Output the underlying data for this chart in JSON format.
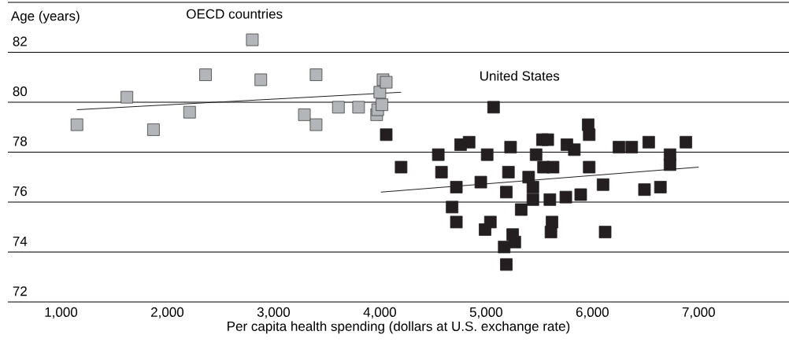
{
  "chart_data": {
    "type": "scatter",
    "xlabel": "Per capita health spending (dollars at U.S. exchange rate)",
    "ylabel": "Age (years)",
    "xlim": [
      500,
      7850
    ],
    "ylim": [
      72,
      84
    ],
    "xticks": [
      {
        "value": 1000,
        "label": "1,000"
      },
      {
        "value": 2000,
        "label": "2,000"
      },
      {
        "value": 3000,
        "label": "3,000"
      },
      {
        "value": 4000,
        "label": "4,000"
      },
      {
        "value": 5000,
        "label": "5,000"
      },
      {
        "value": 6000,
        "label": "6,000"
      },
      {
        "value": 7000,
        "label": "7,000"
      }
    ],
    "yticks": [
      72,
      74,
      76,
      78,
      80,
      82,
      {
        "value": 84,
        "label": null
      }
    ],
    "grid": "y",
    "marker": "square",
    "series": [
      {
        "name": "OECD countries",
        "color": "#b4b5b9",
        "x": [
          1150,
          1620,
          1870,
          2210,
          2360,
          2800,
          2880,
          3290,
          3400,
          3400,
          3610,
          3800,
          3970,
          3980,
          4020,
          4000,
          4030,
          4060
        ],
        "values": [
          79.1,
          80.2,
          78.9,
          79.6,
          81.1,
          82.5,
          80.9,
          79.5,
          81.1,
          79.1,
          79.8,
          79.8,
          79.5,
          79.7,
          79.9,
          80.4,
          80.9,
          80.8
        ]
      },
      {
        "name": "United States",
        "color": "#231f20",
        "x": [
          5070,
          4060,
          4200,
          4550,
          4580,
          4760,
          4840,
          4720,
          4680,
          4720,
          4950,
          5010,
          4990,
          5040,
          5230,
          5210,
          5190,
          5250,
          5270,
          5170,
          5190,
          5330,
          5400,
          5440,
          5440,
          5470,
          5530,
          5580,
          5540,
          5630,
          5600,
          5620,
          5610,
          5750,
          5760,
          5830,
          5890,
          5960,
          5970,
          5970,
          6100,
          6120,
          6250,
          6370,
          6530,
          6490,
          6640,
          6730,
          6730,
          6880
        ],
        "values": [
          79.8,
          78.7,
          77.4,
          77.9,
          77.2,
          78.3,
          78.4,
          76.6,
          75.8,
          75.2,
          76.8,
          77.9,
          74.9,
          75.2,
          78.2,
          77.2,
          76.4,
          74.7,
          74.4,
          74.2,
          73.5,
          75.7,
          77.0,
          76.6,
          76.1,
          77.9,
          78.5,
          78.5,
          77.4,
          77.4,
          76.1,
          75.2,
          74.8,
          76.2,
          78.3,
          78.1,
          76.3,
          79.1,
          78.7,
          77.4,
          76.7,
          74.8,
          78.2,
          78.2,
          78.4,
          76.5,
          76.6,
          77.9,
          77.5,
          78.4
        ]
      },
      {
        "type": "line",
        "color": "#231f20",
        "marker": "none",
        "x": [
          1150,
          4200
        ],
        "values": [
          79.7,
          80.4
        ]
      },
      {
        "type": "line",
        "color": "#231f20",
        "marker": "none",
        "x": [
          4010,
          7000
        ],
        "values": [
          76.4,
          77.4
        ]
      }
    ]
  }
}
